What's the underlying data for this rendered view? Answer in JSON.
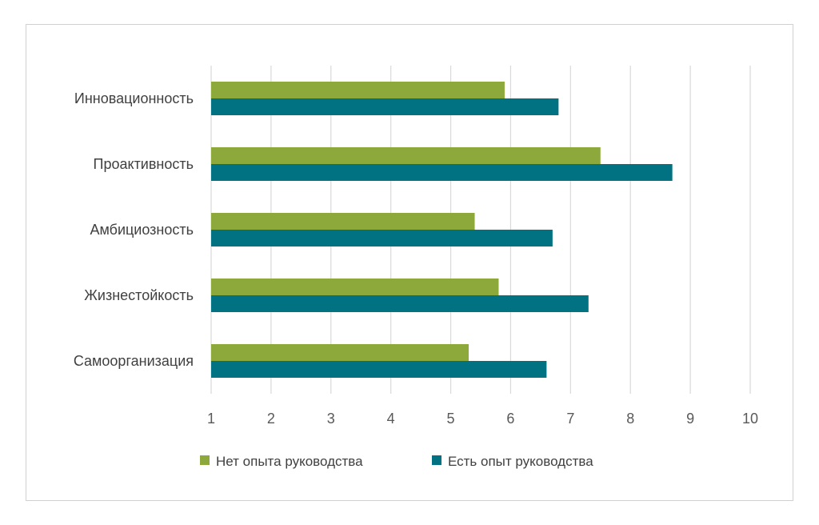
{
  "chart_data": {
    "type": "bar",
    "orientation": "horizontal",
    "categories": [
      "Инновационность",
      "Проактивность",
      "Амбициозность",
      "Жизнестойкость",
      "Самоорганизация"
    ],
    "series": [
      {
        "name": "Нет опыта руководства",
        "color": "#8DA93C",
        "values": [
          5.9,
          7.5,
          5.4,
          5.8,
          5.3
        ]
      },
      {
        "name": "Есть опыт руководства",
        "color": "#007282",
        "values": [
          6.8,
          8.7,
          6.7,
          7.3,
          6.6
        ]
      }
    ],
    "xlim": [
      1,
      10
    ],
    "xticks": [
      "1",
      "2",
      "3",
      "4",
      "5",
      "6",
      "7",
      "8",
      "9",
      "10"
    ],
    "grid": true,
    "legend": "bottom",
    "title": "",
    "xlabel": "",
    "ylabel": ""
  }
}
